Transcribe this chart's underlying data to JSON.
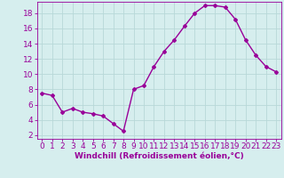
{
  "x": [
    0,
    1,
    2,
    3,
    4,
    5,
    6,
    7,
    8,
    9,
    10,
    11,
    12,
    13,
    14,
    15,
    16,
    17,
    18,
    19,
    20,
    21,
    22,
    23
  ],
  "y": [
    7.5,
    7.2,
    5.0,
    5.5,
    5.0,
    4.8,
    4.5,
    3.5,
    2.5,
    8.0,
    8.5,
    11.0,
    13.0,
    14.5,
    16.3,
    18.0,
    19.0,
    19.0,
    18.8,
    17.2,
    14.5,
    12.5,
    11.0,
    10.3
  ],
  "line_color": "#990099",
  "marker": "D",
  "marker_size": 2.0,
  "linewidth": 1.0,
  "xlabel": "Windchill (Refroidissement éolien,°C)",
  "xlim": [
    -0.5,
    23.5
  ],
  "ylim": [
    1.5,
    19.5
  ],
  "yticks": [
    2,
    4,
    6,
    8,
    10,
    12,
    14,
    16,
    18
  ],
  "xticks": [
    0,
    1,
    2,
    3,
    4,
    5,
    6,
    7,
    8,
    9,
    10,
    11,
    12,
    13,
    14,
    15,
    16,
    17,
    18,
    19,
    20,
    21,
    22,
    23
  ],
  "bg_color": "#d6eeee",
  "grid_color": "#b8d8d8",
  "xlabel_fontsize": 6.5,
  "tick_fontsize": 6.5
}
